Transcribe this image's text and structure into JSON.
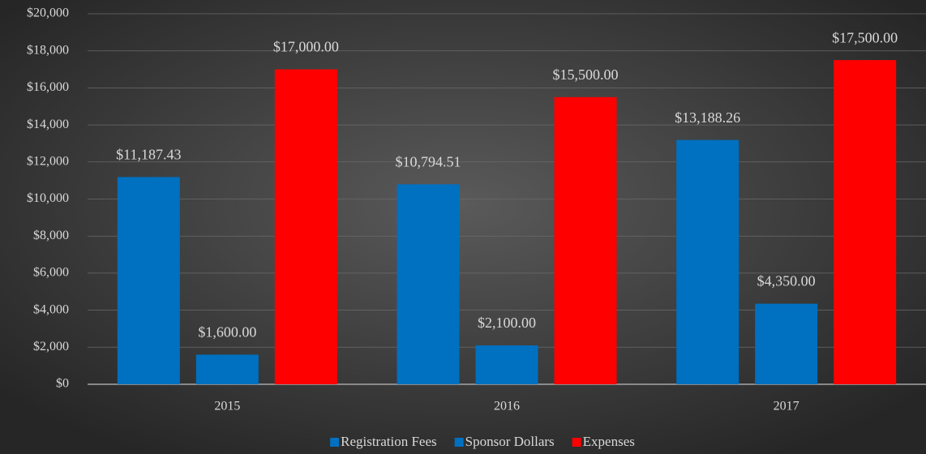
{
  "chart_data": {
    "type": "bar",
    "categories": [
      "2015",
      "2016",
      "2017"
    ],
    "series": [
      {
        "name": "Registration Fees",
        "color": "#0070c0",
        "values": [
          11187.43,
          10794.51,
          13188.26
        ],
        "value_labels": [
          "$11,187.43",
          "$10,794.51",
          "$13,188.26"
        ]
      },
      {
        "name": "Sponsor Dollars",
        "color": "#0070c0",
        "values": [
          1600,
          2100,
          4350
        ],
        "value_labels": [
          "$1,600.00",
          "$2,100.00",
          "$4,350.00"
        ]
      },
      {
        "name": "Expenses",
        "color": "#ff0000",
        "values": [
          17000,
          15500,
          17500
        ],
        "value_labels": [
          "$17,000.00",
          "$15,500.00",
          "$17,500.00"
        ]
      }
    ],
    "ylim": [
      0,
      20000
    ],
    "yticks": [
      {
        "value": 0,
        "label": "$0"
      },
      {
        "value": 2000,
        "label": "$2,000"
      },
      {
        "value": 4000,
        "label": "$4,000"
      },
      {
        "value": 6000,
        "label": "$6,000"
      },
      {
        "value": 8000,
        "label": "$8,000"
      },
      {
        "value": 10000,
        "label": "$10,000"
      },
      {
        "value": 12000,
        "label": "$12,000"
      },
      {
        "value": 14000,
        "label": "$14,000"
      },
      {
        "value": 16000,
        "label": "$16,000"
      },
      {
        "value": 18000,
        "label": "$18,000"
      },
      {
        "value": 20000,
        "label": "$20,000"
      }
    ],
    "grid": true,
    "legend": "bottom"
  }
}
